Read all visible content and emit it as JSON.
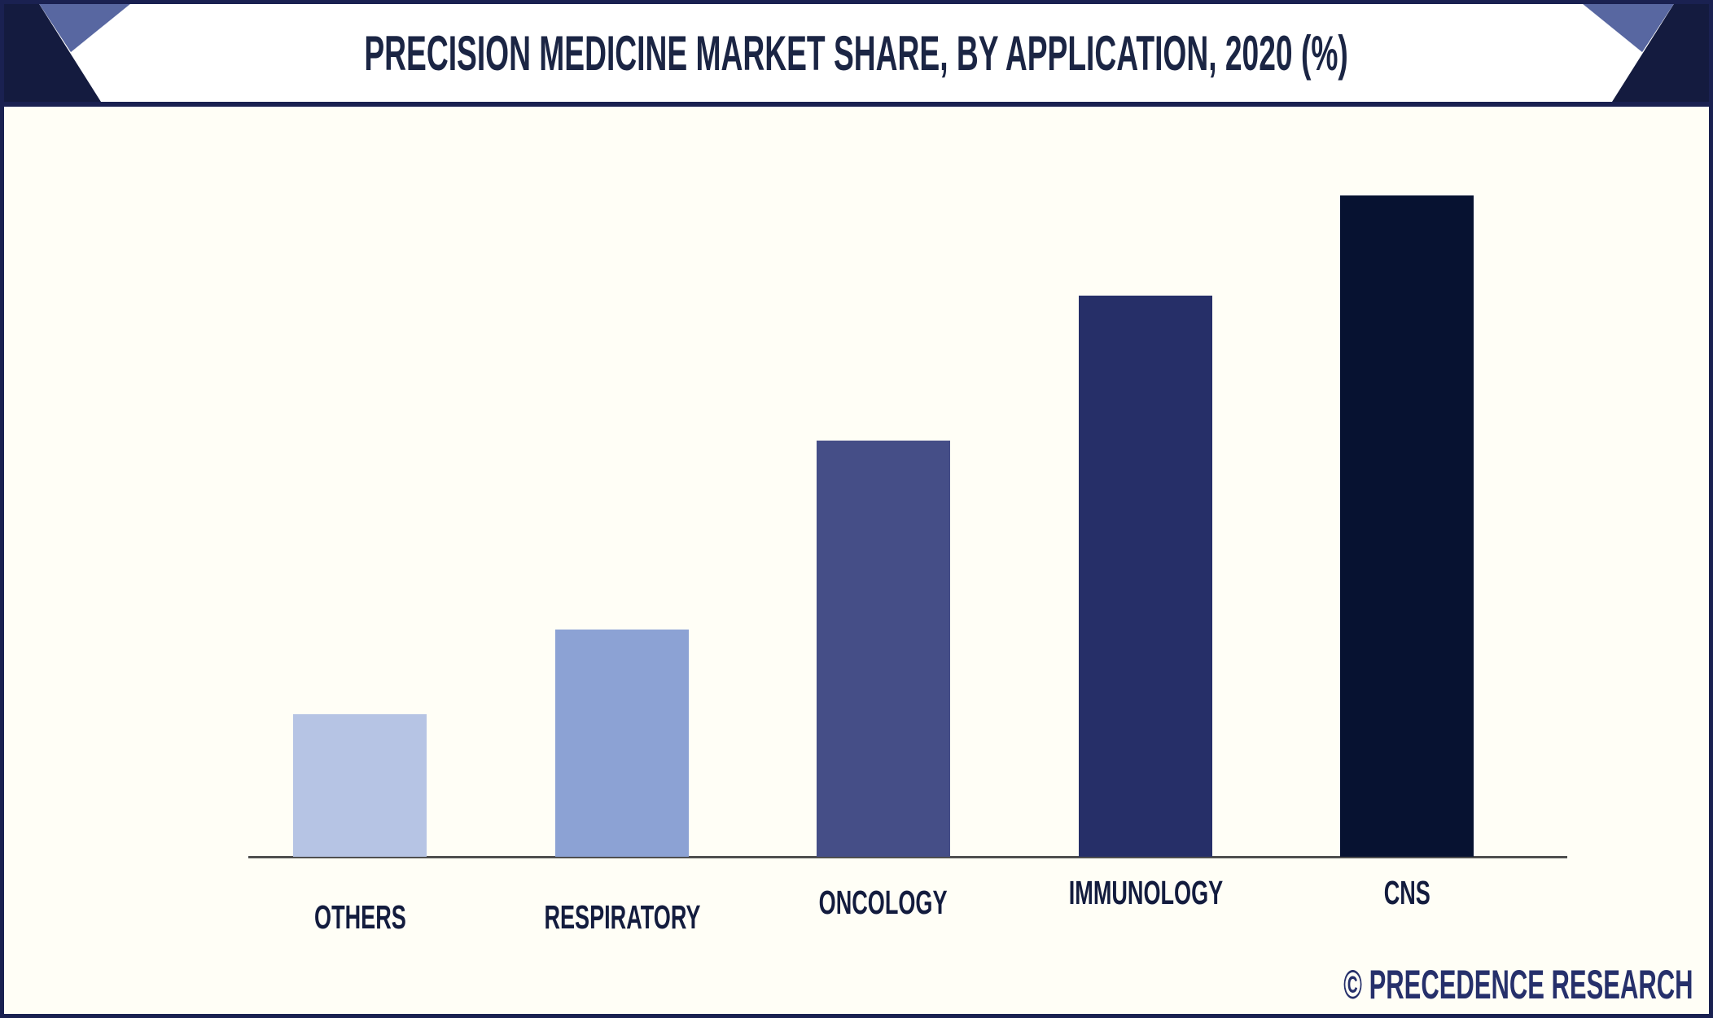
{
  "header": {
    "title": "PRECISION MEDICINE MARKET SHARE, BY APPLICATION, 2020 (%)"
  },
  "chart_data": {
    "type": "bar",
    "title": "PRECISION MEDICINE MARKET SHARE, BY APPLICATION, 2020 (%)",
    "categories": [
      "OTHERS",
      "RESPIRATORY",
      "ONCOLOGY",
      "IMMUNOLOGY",
      "CNS"
    ],
    "values": [
      7.1,
      11.3,
      20.7,
      27.9,
      32.9
    ],
    "unit": "%",
    "xlabel": "",
    "ylabel": "",
    "ylim": [
      0,
      35
    ],
    "grid": false,
    "legend": false,
    "value_labels_shown": false,
    "bar_colors": [
      "#B6C4E4",
      "#8CA2D4",
      "#454E87",
      "#262F68",
      "#071231"
    ]
  },
  "footer": {
    "credit": "© PRECEDENCE RESEARCH"
  },
  "icons": {
    "corner_left": "corner-ribbon-left-icon",
    "corner_right": "corner-ribbon-right-icon"
  },
  "colors": {
    "frame_border": "#1A2151",
    "header_separator": "#1A2151",
    "corner_dark_navy": "#141B3F",
    "corner_light_blue": "#5867A1",
    "title_text": "#1B2544",
    "bar_label_text": "#131C3E",
    "credit_text": "#26306B",
    "axis_line": "#4F4F4F",
    "background": "#FFFEF6",
    "header_background": "#FFFFFF"
  }
}
